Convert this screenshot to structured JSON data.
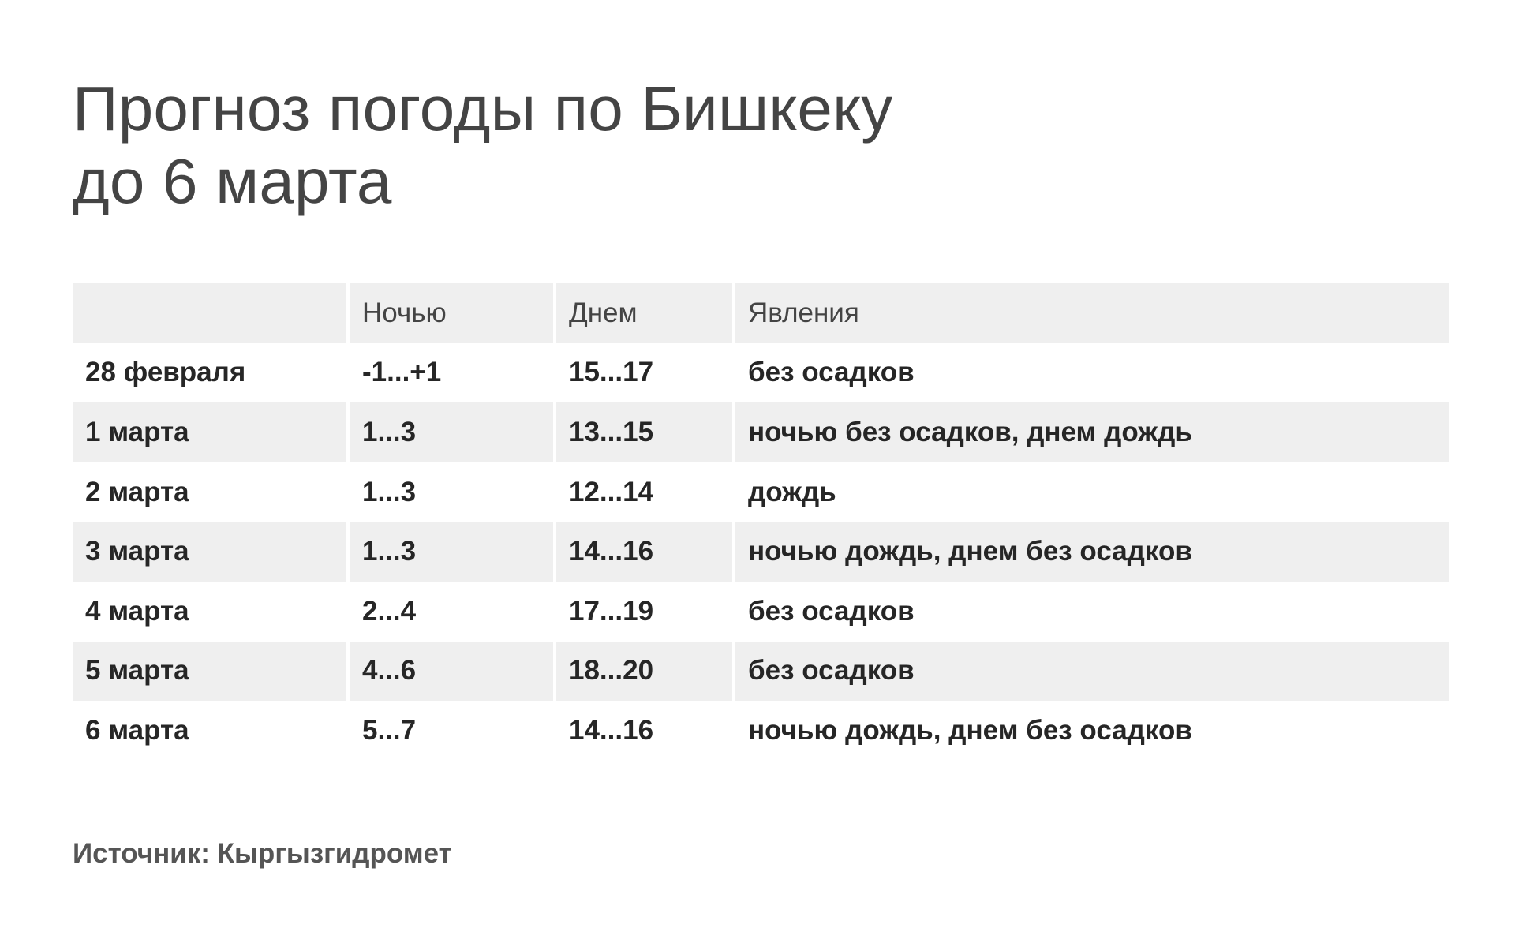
{
  "title": {
    "line1": "Прогноз погоды по Бишкеку",
    "line2": "до 6 марта"
  },
  "chart_data": {
    "type": "table",
    "columns": [
      "",
      "Ночью",
      "Днем",
      "Явления"
    ],
    "rows": [
      {
        "date": "28 февраля",
        "night": "-1...+1",
        "day": "15...17",
        "phenomena": "без осадков"
      },
      {
        "date": "1 марта",
        "night": "1...3",
        "day": "13...15",
        "phenomena": "ночью без осадков, днем дождь"
      },
      {
        "date": "2 марта",
        "night": "1...3",
        "day": "12...14",
        "phenomena": "дождь"
      },
      {
        "date": "3 марта",
        "night": "1...3",
        "day": "14...16",
        "phenomena": "ночью дождь, днем без осадков"
      },
      {
        "date": "4 марта",
        "night": "2...4",
        "day": "17...19",
        "phenomena": "без осадков"
      },
      {
        "date": "5 марта",
        "night": "4...6",
        "day": "18...20",
        "phenomena": "без осадков"
      },
      {
        "date": "6 марта",
        "night": "5...7",
        "day": "14...16",
        "phenomena": "ночью дождь, днем без осадков"
      }
    ]
  },
  "source": "Источник: Кыргызгидромет",
  "colors": {
    "header_bg": "#efefef",
    "stripe_bg": "#efefef",
    "title_text": "#444444",
    "body_text": "#262626"
  }
}
